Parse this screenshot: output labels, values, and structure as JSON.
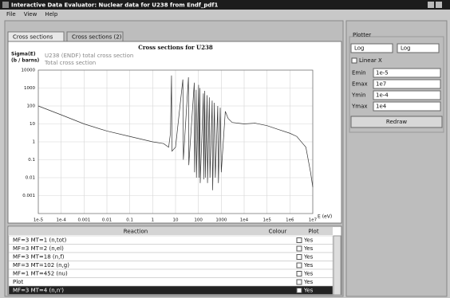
{
  "window": {
    "title": "Interactive Data Evaluator: Nuclear data for U238 from Endf_pdf1"
  },
  "menu": [
    "File",
    "View",
    "Help"
  ],
  "tabs": [
    "Cross sections",
    "Cross sections (2)"
  ],
  "chart_data": {
    "type": "line",
    "title": "Cross sections for U238",
    "subtitle": [
      "U238 (ENDF) total cross section",
      "Total cross section"
    ],
    "ylabel": [
      "Sigma(E)",
      "(b / barns)"
    ],
    "xlabel": "E (eV)",
    "xscale": "log",
    "yscale": "log",
    "grid": true,
    "xlim": [
      1e-05,
      10000000
    ],
    "ylim": [
      0.0001,
      10000
    ],
    "xticks": [
      {
        "value": 1e-05,
        "label": "1e-5"
      },
      {
        "value": 0.0001,
        "label": "1e-4"
      },
      0.001,
      0.01,
      0.1,
      1,
      10,
      100,
      1000,
      {
        "value": 10000,
        "label": "1e4"
      },
      {
        "value": 100000,
        "label": "1e5"
      },
      {
        "value": 1000000,
        "label": "1e6"
      },
      {
        "value": 10000000,
        "label": "1e7"
      }
    ],
    "yticks": [
      0.001,
      0.01,
      0.1,
      1,
      10,
      100,
      1000,
      10000
    ],
    "x": [
      1e-05,
      0.0001,
      0.001,
      0.01,
      0.1,
      1,
      3,
      5,
      6,
      6.67,
      7,
      10,
      20.9,
      22,
      36.7,
      38,
      66,
      68,
      80,
      82,
      102,
      105,
      116,
      120,
      165,
      170,
      190,
      200,
      240,
      250,
      300,
      320,
      400,
      420,
      500,
      550,
      700,
      750,
      900,
      1000,
      1500,
      2000,
      3000,
      10000,
      30000,
      100000,
      300000,
      1000000,
      2000000,
      5000000,
      8000000,
      10000000
    ],
    "series": [
      {
        "name": "Total cross section",
        "color": "#333333",
        "values": [
          100,
          32,
          10,
          4,
          2,
          1,
          0.8,
          0.5,
          3,
          5000,
          0.3,
          0.5,
          3000,
          0.1,
          4000,
          0.05,
          2000,
          0.02,
          800,
          0.01,
          1500,
          0.01,
          1000,
          0.005,
          500,
          0.008,
          700,
          0.01,
          400,
          0.005,
          300,
          0.01,
          200,
          0.002,
          150,
          0.01,
          100,
          0.005,
          80,
          0.02,
          50,
          20,
          12,
          10,
          11,
          8,
          5,
          3,
          2,
          0.5,
          0.02,
          0.003
        ]
      }
    ]
  },
  "table": {
    "columns": [
      "Reaction",
      "Colour",
      "Plot"
    ],
    "rows": [
      [
        "MF=3 MT=1 (n,tot)",
        "",
        "Yes"
      ],
      [
        "MF=3 MT=2 (n,el)",
        "",
        "Yes"
      ],
      [
        "MF=3 MT=18 (n,f)",
        "",
        "Yes"
      ],
      [
        "MF=3 MT=102 (n,g)",
        "",
        "Yes"
      ],
      [
        "MF=1 MT=452 (nu)",
        "",
        "Yes"
      ],
      [
        "Plot",
        "",
        "Yes"
      ],
      [
        "MF=3 MT=4 (n,n')",
        "",
        "Yes"
      ]
    ]
  },
  "panel": {
    "group": "Plotter",
    "scales": [
      "Log",
      "Log"
    ],
    "checkbox": "Linear X",
    "fields": [
      [
        "Emin",
        "1e-5"
      ],
      [
        "Emax",
        "1e7"
      ],
      [
        "Ymin",
        "1e-4"
      ],
      [
        "Ymax",
        "1e4"
      ]
    ],
    "button": "Redraw"
  }
}
